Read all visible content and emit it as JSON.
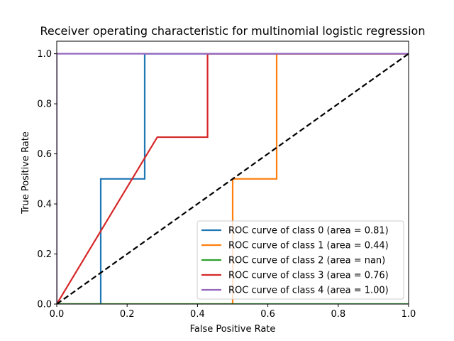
{
  "chart_data": {
    "type": "line",
    "title": "Receiver operating characteristic for multinomial logistic regression",
    "xlabel": "False Positive Rate",
    "ylabel": "True Positive Rate",
    "xlim": [
      0.0,
      1.0
    ],
    "ylim": [
      0.0,
      1.05
    ],
    "xticks": [
      "0.0",
      "0.2",
      "0.4",
      "0.6",
      "0.8",
      "1.0"
    ],
    "yticks": [
      "0.0",
      "0.2",
      "0.4",
      "0.6",
      "0.8",
      "1.0"
    ],
    "grid": false,
    "legend_position": "lower-right",
    "series": [
      {
        "name": "ROC curve of class 0 (area = 0.81)",
        "color": "#1f77b4",
        "x": [
          0.0,
          0.125,
          0.125,
          0.25,
          0.25,
          1.0
        ],
        "y": [
          0.0,
          0.0,
          0.5,
          0.5,
          1.0,
          1.0
        ]
      },
      {
        "name": "ROC curve of class 1 (area = 0.44)",
        "color": "#ff7f0e",
        "x": [
          0.0,
          0.5,
          0.5,
          0.625,
          0.625,
          1.0
        ],
        "y": [
          0.0,
          0.0,
          0.5,
          0.5,
          1.0,
          1.0
        ]
      },
      {
        "name": "ROC curve of class 2 (area = nan)",
        "color": "#2ca02c",
        "x": [
          0.0,
          1.0
        ],
        "y": [
          0.0,
          0.0
        ]
      },
      {
        "name": "ROC curve of class 3 (area = 0.76)",
        "color": "#d62728",
        "x": [
          0.0,
          0.2857,
          0.4286,
          0.4286,
          1.0
        ],
        "y": [
          0.0,
          0.6667,
          0.6667,
          1.0,
          1.0
        ]
      },
      {
        "name": "ROC curve of class 4 (area = 1.00)",
        "color": "#9467bd",
        "x": [
          0.0,
          0.0,
          1.0
        ],
        "y": [
          0.0,
          1.0,
          1.0
        ]
      }
    ],
    "reference_line": {
      "x": [
        0.0,
        1.0
      ],
      "y": [
        0.0,
        1.0
      ],
      "color": "#000000",
      "style": "dashed"
    }
  }
}
